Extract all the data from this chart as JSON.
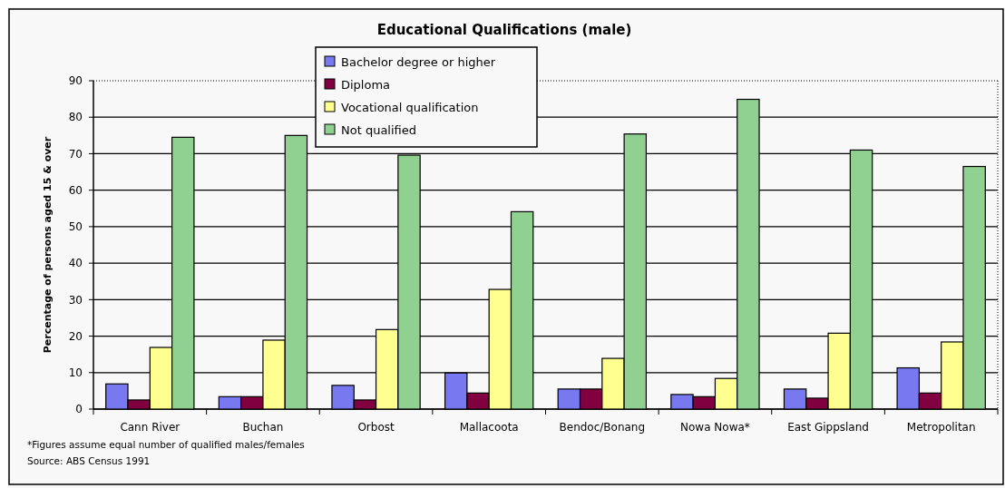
{
  "chart_data": {
    "type": "bar",
    "title": "Educational Qualifications (male)",
    "ylabel": "Percentage of persons aged 15 & over",
    "categories": [
      "Cann River",
      "Buchan",
      "Orbost",
      "Mallacoota",
      "Bendoc/Bonang",
      "Nowa Nowa*",
      "East Gippsland",
      "Metropolitan"
    ],
    "series": [
      {
        "name": "Bachelor degree or higher",
        "color": "#7878f0",
        "values": [
          6.9,
          3.4,
          6.5,
          9.9,
          5.5,
          4.0,
          5.5,
          11.3
        ]
      },
      {
        "name": "Diploma",
        "color": "#800040",
        "values": [
          2.5,
          3.4,
          2.5,
          4.4,
          5.5,
          3.4,
          3.0,
          4.4
        ]
      },
      {
        "name": "Vocational qualification",
        "color": "#ffff90",
        "values": [
          16.9,
          18.9,
          21.8,
          32.8,
          13.9,
          8.4,
          20.8,
          18.4
        ]
      },
      {
        "name": "Not qualified",
        "color": "#90d090",
        "values": [
          74.5,
          75.0,
          69.6,
          54.1,
          75.4,
          84.9,
          71.0,
          66.5
        ]
      }
    ],
    "ylim": [
      0,
      90
    ],
    "yticks": [
      0,
      10,
      20,
      30,
      40,
      50,
      60,
      70,
      80,
      90
    ],
    "grid": "y",
    "legend": "top",
    "annotations": [
      "*Figures assume equal number of qualified males/females",
      "Source: ABS Census 1991"
    ]
  }
}
